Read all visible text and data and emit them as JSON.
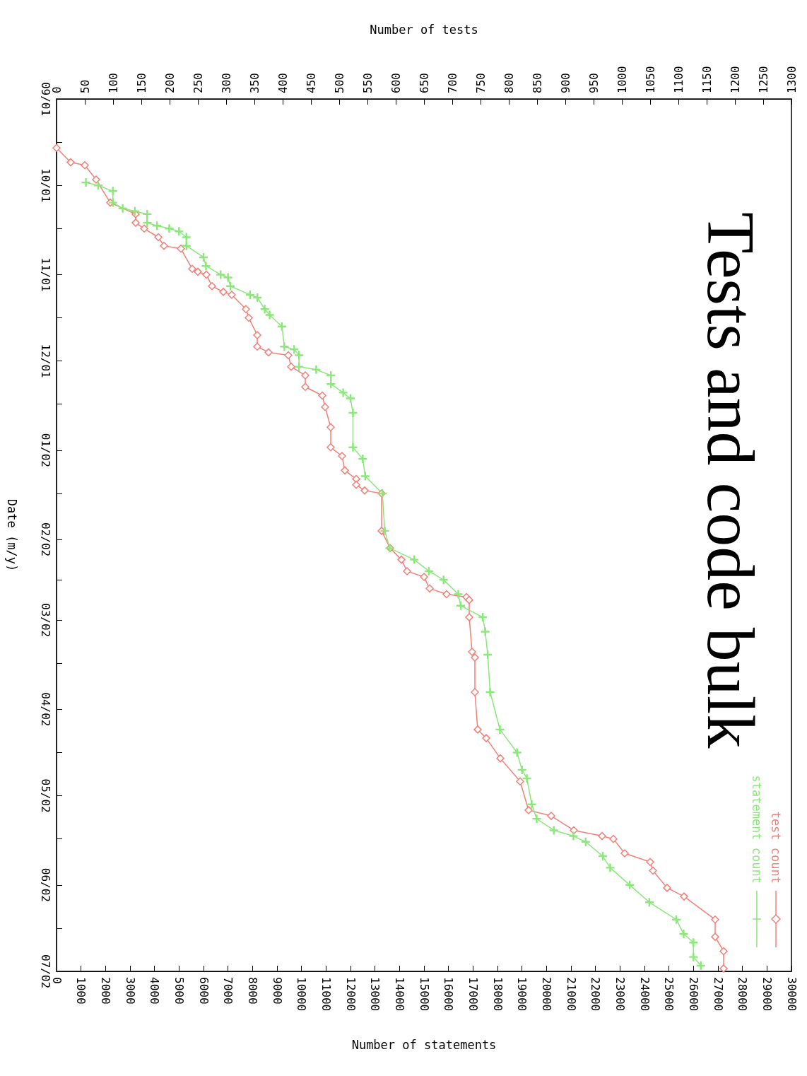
{
  "chart_data": {
    "type": "line",
    "orientation": "horizontal",
    "title": "Tests and code bulk",
    "ylabel": "Date (m/y)",
    "x2label": "Number of tests",
    "xlabel": "Number of statements",
    "ylim": [
      "2002-07-01",
      "2001-09-01"
    ],
    "yticks": [
      {
        "value": "2001-09-01",
        "label": "09/01"
      },
      {
        "value": "2001-09-16",
        "label": null
      },
      {
        "value": "2001-10-01",
        "label": "10/01"
      },
      {
        "value": "2001-10-16",
        "label": null
      },
      {
        "value": "2001-11-01",
        "label": "11/01"
      },
      {
        "value": "2001-11-16",
        "label": null
      },
      {
        "value": "2001-12-01",
        "label": "12/01"
      },
      {
        "value": "2001-12-16",
        "label": null
      },
      {
        "value": "2002-01-01",
        "label": "01/02"
      },
      {
        "value": "2002-01-16",
        "label": null
      },
      {
        "value": "2002-02-01",
        "label": "02/02"
      },
      {
        "value": "2002-02-15",
        "label": null
      },
      {
        "value": "2002-03-01",
        "label": "03/02"
      },
      {
        "value": "2002-03-16",
        "label": null
      },
      {
        "value": "2002-04-01",
        "label": "04/02"
      },
      {
        "value": "2002-04-16",
        "label": null
      },
      {
        "value": "2002-05-01",
        "label": "05/02"
      },
      {
        "value": "2002-05-16",
        "label": null
      },
      {
        "value": "2002-06-01",
        "label": "06/02"
      },
      {
        "value": "2002-06-16",
        "label": null
      },
      {
        "value": "2002-07-01",
        "label": "07/02"
      }
    ],
    "x2lim": [
      0,
      1300
    ],
    "x2ticks": [
      0,
      50,
      100,
      150,
      200,
      250,
      300,
      350,
      400,
      450,
      500,
      550,
      600,
      650,
      700,
      750,
      800,
      850,
      900,
      950,
      1000,
      1050,
      1100,
      1150,
      1200,
      1250,
      1300
    ],
    "xlim": [
      0,
      30000
    ],
    "xticks": [
      0,
      1000,
      2000,
      3000,
      4000,
      5000,
      6000,
      7000,
      8000,
      9000,
      10000,
      11000,
      12000,
      13000,
      14000,
      15000,
      16000,
      17000,
      18000,
      19000,
      20000,
      21000,
      22000,
      23000,
      24000,
      25000,
      26000,
      27000,
      28000,
      29000,
      30000
    ],
    "legend": "bottom right",
    "line_style": "solid",
    "series": [
      {
        "name": "test count",
        "color": "#f47f76",
        "marker": "diamond",
        "axis": "x2",
        "x": [
          "2001-09-18",
          "2001-09-23",
          "2001-09-24",
          "2001-09-29",
          "2001-10-07",
          "2001-10-11",
          "2001-10-14",
          "2001-10-16",
          "2001-10-19",
          "2001-10-22",
          "2001-10-23",
          "2001-10-30",
          "2001-10-31",
          "2001-11-01",
          "2001-11-05",
          "2001-11-07",
          "2001-11-08",
          "2001-11-13",
          "2001-11-16",
          "2001-11-22",
          "2001-11-26",
          "2001-11-28",
          "2001-11-29",
          "2001-12-03",
          "2001-12-06",
          "2001-12-10",
          "2001-12-13",
          "2001-12-17",
          "2001-12-24",
          "2001-12-31",
          "2002-01-03",
          "2002-01-08",
          "2002-01-11",
          "2002-01-13",
          "2002-01-15",
          "2002-01-16",
          "2002-01-29",
          "2002-02-04",
          "2002-02-08",
          "2002-02-12",
          "2002-02-14",
          "2002-02-18",
          "2002-02-20",
          "2002-02-21",
          "2002-02-22",
          "2002-02-28",
          "2002-03-12",
          "2002-03-14",
          "2002-03-26",
          "2002-04-08",
          "2002-04-11",
          "2002-04-18",
          "2002-04-26",
          "2002-05-06",
          "2002-05-08",
          "2002-05-13",
          "2002-05-15",
          "2002-05-16",
          "2002-05-21",
          "2002-05-24",
          "2002-05-27",
          "2002-06-02",
          "2002-06-05",
          "2002-06-13",
          "2002-06-19",
          "2002-06-24",
          "2002-06-30"
        ],
        "values": [
          0,
          25,
          50,
          70,
          95,
          140,
          140,
          155,
          180,
          190,
          220,
          240,
          250,
          265,
          275,
          295,
          310,
          335,
          340,
          355,
          355,
          375,
          410,
          415,
          440,
          440,
          470,
          475,
          485,
          485,
          505,
          510,
          530,
          530,
          545,
          575,
          575,
          590,
          610,
          620,
          650,
          660,
          690,
          725,
          730,
          730,
          735,
          740,
          740,
          745,
          760,
          785,
          820,
          835,
          875,
          915,
          965,
          985,
          1005,
          1050,
          1055,
          1080,
          1110,
          1165,
          1165,
          1180,
          1180
        ]
      },
      {
        "name": "statement count",
        "color": "#8ae87a",
        "marker": "cross",
        "x": [
          "2001-09-30",
          "2001-10-01",
          "2001-10-03",
          "2001-10-07",
          "2001-10-09",
          "2001-10-10",
          "2001-10-11",
          "2001-10-14",
          "2001-10-15",
          "2001-10-16",
          "2001-10-17",
          "2001-10-19",
          "2001-10-22",
          "2001-10-26",
          "2001-10-29",
          "2001-11-01",
          "2001-11-02",
          "2001-11-05",
          "2001-11-08",
          "2001-11-09",
          "2001-11-13",
          "2001-11-15",
          "2001-11-19",
          "2001-11-26",
          "2001-11-27",
          "2001-11-29",
          "2001-12-03",
          "2001-12-04",
          "2001-12-06",
          "2001-12-09",
          "2001-12-12",
          "2001-12-14",
          "2001-12-19",
          "2001-12-31",
          "2002-01-04",
          "2002-01-10",
          "2002-01-16",
          "2002-01-29",
          "2002-02-04",
          "2002-02-08",
          "2002-02-12",
          "2002-02-15",
          "2002-02-20",
          "2002-02-24",
          "2002-02-28",
          "2002-03-05",
          "2002-03-13",
          "2002-03-26",
          "2002-04-08",
          "2002-04-16",
          "2002-04-22",
          "2002-04-25",
          "2002-05-04",
          "2002-05-09",
          "2002-05-13",
          "2002-05-15",
          "2002-05-17",
          "2002-05-22",
          "2002-05-26",
          "2002-06-01",
          "2002-06-07",
          "2002-06-13",
          "2002-06-18",
          "2002-06-21",
          "2002-06-26",
          "2002-06-29"
        ],
        "values": [
          1200,
          1700,
          2300,
          2300,
          2700,
          3200,
          3700,
          3700,
          4100,
          4600,
          5000,
          5300,
          5300,
          6000,
          6100,
          6700,
          7000,
          7100,
          7900,
          8200,
          8500,
          8700,
          9200,
          9300,
          9700,
          9900,
          9900,
          10600,
          11200,
          11200,
          11700,
          12000,
          12100,
          12100,
          12500,
          12600,
          13300,
          13400,
          13600,
          14600,
          15200,
          15800,
          16400,
          16500,
          17400,
          17500,
          17600,
          17700,
          18100,
          18800,
          19000,
          19200,
          19400,
          19600,
          20300,
          21100,
          21600,
          22300,
          22600,
          23400,
          24200,
          25300,
          25600,
          26000,
          26000,
          26300
        ]
      }
    ]
  }
}
